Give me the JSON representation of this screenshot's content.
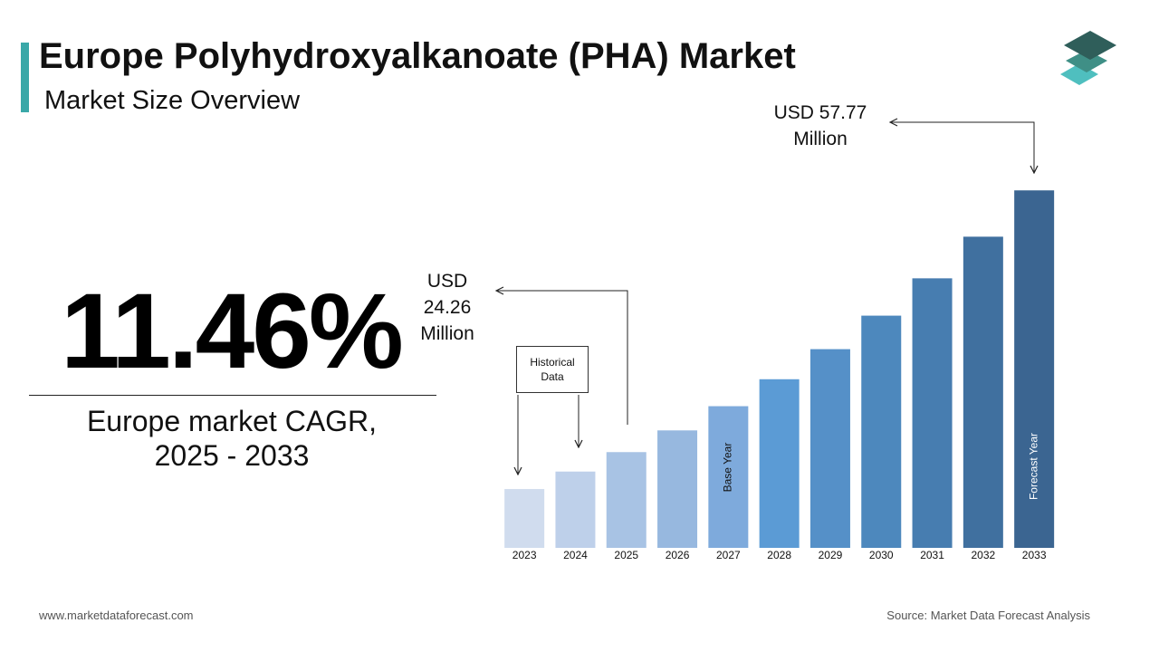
{
  "chart_data": {
    "type": "bar",
    "title": "Europe Polyhydroxyalkanoate (PHA) Market",
    "subtitle": "Market Size Overview",
    "categories": [
      "2023",
      "2024",
      "2025",
      "2026",
      "2027",
      "2028",
      "2029",
      "2030",
      "2031",
      "2032",
      "2033"
    ],
    "values": [
      19.53,
      21.77,
      24.26,
      27.04,
      30.14,
      33.59,
      37.44,
      41.73,
      46.51,
      51.84,
      57.77
    ],
    "value_labels": [
      null,
      null,
      "USD 24.26 Million",
      null,
      null,
      null,
      null,
      null,
      null,
      null,
      "USD 57.77 Million"
    ],
    "colors": [
      "#d0dcee",
      "#bed0ea",
      "#a8c3e4",
      "#97b8df",
      "#7eaadc",
      "#5b9bd5",
      "#5590c8",
      "#4d88bd",
      "#477db0",
      "#40709f",
      "#3b6591"
    ],
    "ylim": [
      12,
      60
    ],
    "annotations": {
      "historical": "Historical Data",
      "base_year": "Base Year",
      "forecast_year": "Forecast Year"
    }
  },
  "kpi": {
    "value": "11.46%",
    "label": "Europe market CAGR, 2025 - 2033"
  },
  "footer": {
    "website": "www.marketdataforecast.com",
    "source": "Source: Market Data Forecast Analysis"
  }
}
